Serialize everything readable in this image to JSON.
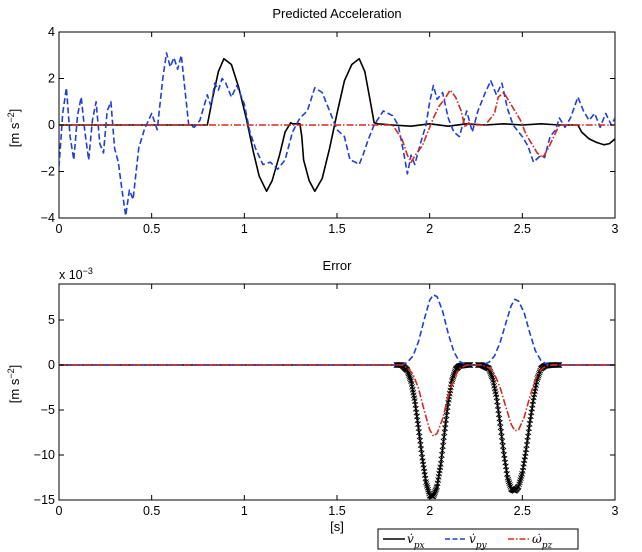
{
  "chart_data": [
    {
      "type": "line",
      "title": "Predicted Acceleration",
      "ylabel": "[m s^-2]",
      "xlabel": "",
      "xlim": [
        0,
        3
      ],
      "ylim": [
        -4,
        4
      ],
      "xticks": [
        0,
        0.5,
        1,
        1.5,
        2,
        2.5,
        3
      ],
      "xtick_labels": [
        "0",
        "0.5",
        "1",
        "1.5",
        "2",
        "2.5",
        "3"
      ],
      "yticks": [
        -4,
        -2,
        0,
        2,
        4
      ],
      "ytick_labels": [
        "−4",
        "−2",
        "0",
        "2",
        "4"
      ],
      "grid": false,
      "series": [
        {
          "id": "vpx",
          "color": "#000000",
          "dash": "solid",
          "x": [
            0,
            0.5,
            0.8,
            0.83,
            0.86,
            0.89,
            0.93,
            0.97,
            1.01,
            1.05,
            1.08,
            1.12,
            1.15,
            1.19,
            1.22,
            1.25,
            1.26,
            1.28,
            1.3,
            1.31,
            1.32,
            1.35,
            1.38,
            1.42,
            1.46,
            1.5,
            1.54,
            1.58,
            1.62,
            1.65,
            1.68,
            1.7,
            1.72,
            1.8,
            1.9,
            2.0,
            2.1,
            2.2,
            2.3,
            2.4,
            2.5,
            2.6,
            2.7,
            2.8,
            2.82,
            2.86,
            2.9,
            2.94,
            2.97,
            3.0
          ],
          "values": [
            0,
            0,
            0,
            1.2,
            2.3,
            2.85,
            2.6,
            1.6,
            0.3,
            -1.2,
            -2.2,
            -2.85,
            -2.4,
            -1.3,
            -0.3,
            0.1,
            0.05,
            0.05,
            0.05,
            -0.5,
            -1.5,
            -2.4,
            -2.85,
            -2.3,
            -1.0,
            0.5,
            1.9,
            2.6,
            2.85,
            2.3,
            1.0,
            0.1,
            0.05,
            0,
            -0.05,
            0.05,
            -0.05,
            0.05,
            0,
            0.05,
            0,
            0.05,
            0,
            0,
            -0.3,
            -0.6,
            -0.75,
            -0.85,
            -0.8,
            -0.6
          ]
        },
        {
          "id": "vpy",
          "color": "#1f3fd8",
          "dash": "6,3",
          "x": [
            0,
            0.02,
            0.04,
            0.06,
            0.08,
            0.1,
            0.12,
            0.14,
            0.16,
            0.18,
            0.2,
            0.22,
            0.24,
            0.26,
            0.28,
            0.3,
            0.32,
            0.34,
            0.36,
            0.38,
            0.4,
            0.43,
            0.46,
            0.5,
            0.53,
            0.56,
            0.58,
            0.6,
            0.62,
            0.64,
            0.66,
            0.68,
            0.7,
            0.73,
            0.76,
            0.8,
            0.82,
            0.84,
            0.86,
            0.88,
            0.9,
            0.93,
            0.96,
            1.0,
            1.03,
            1.06,
            1.1,
            1.14,
            1.18,
            1.22,
            1.26,
            1.3,
            1.34,
            1.38,
            1.42,
            1.46,
            1.5,
            1.54,
            1.57,
            1.6,
            1.62,
            1.64,
            1.67,
            1.7,
            1.75,
            1.8,
            1.83,
            1.86,
            1.88,
            1.9,
            1.92,
            1.95,
            1.98,
            2.0,
            2.02,
            2.04,
            2.07,
            2.1,
            2.13,
            2.16,
            2.2,
            2.23,
            2.26,
            2.3,
            2.33,
            2.36,
            2.39,
            2.42,
            2.45,
            2.5,
            2.53,
            2.56,
            2.6,
            2.62,
            2.65,
            2.68,
            2.7,
            2.73,
            2.76,
            2.8,
            2.83,
            2.86,
            2.89,
            2.92,
            2.95,
            2.98,
            3.0
          ],
          "values": [
            -1.8,
            0.5,
            1.6,
            -0.5,
            -1.5,
            0.4,
            1.2,
            -0.3,
            -1.5,
            0.2,
            1.0,
            -0.8,
            -1.2,
            0.6,
            1.0,
            -1.0,
            -1.6,
            -2.8,
            -3.9,
            -2.8,
            -3.2,
            -1.0,
            -0.2,
            0.5,
            -0.2,
            2.0,
            3.1,
            2.5,
            2.9,
            2.4,
            3.0,
            1.5,
            0.0,
            -0.1,
            0.2,
            1.3,
            0.8,
            1.8,
            1.5,
            2.0,
            1.8,
            1.2,
            1.7,
            0.9,
            -0.3,
            -1.0,
            -1.7,
            -1.6,
            -1.9,
            -1.5,
            -0.3,
            0.3,
            0.6,
            1.6,
            1.4,
            0.6,
            -0.2,
            -0.5,
            -1.5,
            -1.6,
            -1.7,
            -1.3,
            -0.6,
            0.0,
            0.6,
            0.4,
            0.0,
            -1.2,
            -2.1,
            -1.3,
            -1.7,
            -0.8,
            0.0,
            1.0,
            1.7,
            1.1,
            1.4,
            0.3,
            -0.3,
            -0.5,
            0.6,
            -0.3,
            0.6,
            1.4,
            1.9,
            1.3,
            1.8,
            0.7,
            0.0,
            -0.5,
            -0.9,
            -1.6,
            -1.3,
            -1.4,
            -0.5,
            -0.2,
            0.3,
            -0.1,
            0.3,
            1.2,
            0.6,
            0.2,
            0.5,
            -0.1,
            0.5,
            0.0,
            0.3
          ]
        },
        {
          "id": "wpz",
          "color": "#d62a1e",
          "dash": "7,2,1.5,2",
          "x": [
            0,
            1.8,
            1.85,
            1.88,
            1.9,
            1.93,
            1.96,
            1.99,
            2.02,
            2.05,
            2.08,
            2.11,
            2.14,
            2.17,
            2.19,
            2.21,
            2.23,
            2.3,
            2.35,
            2.37,
            2.4,
            2.43,
            2.46,
            2.49,
            2.52,
            2.55,
            2.58,
            2.61,
            2.64,
            2.67,
            2.7,
            2.75,
            3.0
          ],
          "values": [
            0,
            0,
            -0.6,
            -1.3,
            -1.6,
            -1.2,
            -0.9,
            -0.3,
            0.3,
            0.8,
            1.1,
            1.5,
            1.2,
            0.6,
            -0.1,
            0.1,
            0.0,
            0.0,
            0.5,
            1.2,
            1.4,
            1.0,
            0.6,
            0.2,
            -0.4,
            -0.8,
            -1.2,
            -1.4,
            -1.0,
            -0.5,
            0.0,
            0.0,
            0.0
          ]
        }
      ]
    },
    {
      "type": "line",
      "title": "Error",
      "ylabel": "[m s^-2]",
      "xlabel": "[s]",
      "exponent_label": "x 10^-3",
      "xlim": [
        0,
        3
      ],
      "ylim": [
        -15,
        9
      ],
      "xticks": [
        0,
        0.5,
        1,
        1.5,
        2,
        2.5,
        3
      ],
      "xtick_labels": [
        "0",
        "0.5",
        "1",
        "1.5",
        "2",
        "2.5",
        "3"
      ],
      "yticks": [
        -15,
        -10,
        -5,
        0,
        5
      ],
      "ytick_labels": [
        "−15",
        "−10",
        "−5",
        "0",
        "5"
      ],
      "grid": false,
      "legend_position": "bottom-right",
      "series": [
        {
          "id": "vpx",
          "name": "v̇_px",
          "color": "#000000",
          "dash": "solid",
          "marker": "x",
          "x": [
            0,
            1.85,
            1.88,
            1.9,
            1.92,
            1.94,
            1.96,
            1.98,
            2.0,
            2.02,
            2.04,
            2.06,
            2.08,
            2.1,
            2.12,
            2.14,
            2.16,
            2.2,
            2.28,
            2.32,
            2.34,
            2.36,
            2.38,
            2.4,
            2.42,
            2.44,
            2.46,
            2.48,
            2.5,
            2.52,
            2.54,
            2.56,
            2.58,
            2.6,
            2.62,
            2.66,
            3.0
          ],
          "values": [
            0,
            0,
            -0.6,
            -1.8,
            -4.0,
            -7.0,
            -10.3,
            -13.0,
            -14.5,
            -14.6,
            -13.5,
            -11.0,
            -7.5,
            -4.2,
            -1.8,
            -0.5,
            -0.1,
            0,
            0,
            -0.4,
            -1.5,
            -3.5,
            -6.5,
            -9.8,
            -12.5,
            -13.8,
            -14.0,
            -13.5,
            -12.0,
            -9.5,
            -6.5,
            -3.8,
            -1.6,
            -0.4,
            -0.1,
            0,
            0
          ]
        },
        {
          "id": "vpy",
          "name": "v̇_py",
          "color": "#1f3fd8",
          "dash": "6,3",
          "x": [
            0,
            1.85,
            1.88,
            1.91,
            1.94,
            1.97,
            2.0,
            2.02,
            2.04,
            2.07,
            2.1,
            2.13,
            2.16,
            2.2,
            2.28,
            2.32,
            2.35,
            2.38,
            2.41,
            2.44,
            2.46,
            2.48,
            2.51,
            2.54,
            2.57,
            2.6,
            2.63,
            2.66,
            3.0
          ],
          "values": [
            0,
            0,
            0.3,
            1.0,
            2.6,
            5.0,
            7.2,
            7.8,
            7.6,
            6.0,
            3.5,
            1.5,
            0.4,
            0,
            0,
            0.3,
            1.0,
            2.5,
            4.6,
            6.6,
            7.3,
            7.1,
            5.8,
            3.6,
            1.6,
            0.5,
            0.1,
            0,
            0
          ]
        },
        {
          "id": "wpz",
          "name": "ω̇_pz",
          "color": "#d62a1e",
          "dash": "7,2,1.5,2",
          "x": [
            0,
            1.85,
            1.88,
            1.91,
            1.94,
            1.97,
            2.0,
            2.02,
            2.04,
            2.07,
            2.1,
            2.13,
            2.16,
            2.2,
            2.28,
            2.32,
            2.35,
            2.38,
            2.41,
            2.44,
            2.46,
            2.48,
            2.51,
            2.54,
            2.57,
            2.6,
            2.63,
            2.66,
            3.0
          ],
          "values": [
            0,
            0,
            -0.3,
            -1.0,
            -2.6,
            -5.0,
            -7.2,
            -7.9,
            -7.6,
            -6.0,
            -3.5,
            -1.5,
            -0.4,
            0,
            0,
            -0.3,
            -1.0,
            -2.5,
            -4.6,
            -6.6,
            -7.3,
            -7.2,
            -5.8,
            -3.6,
            -1.6,
            -0.5,
            -0.1,
            0,
            0
          ]
        }
      ]
    }
  ]
}
